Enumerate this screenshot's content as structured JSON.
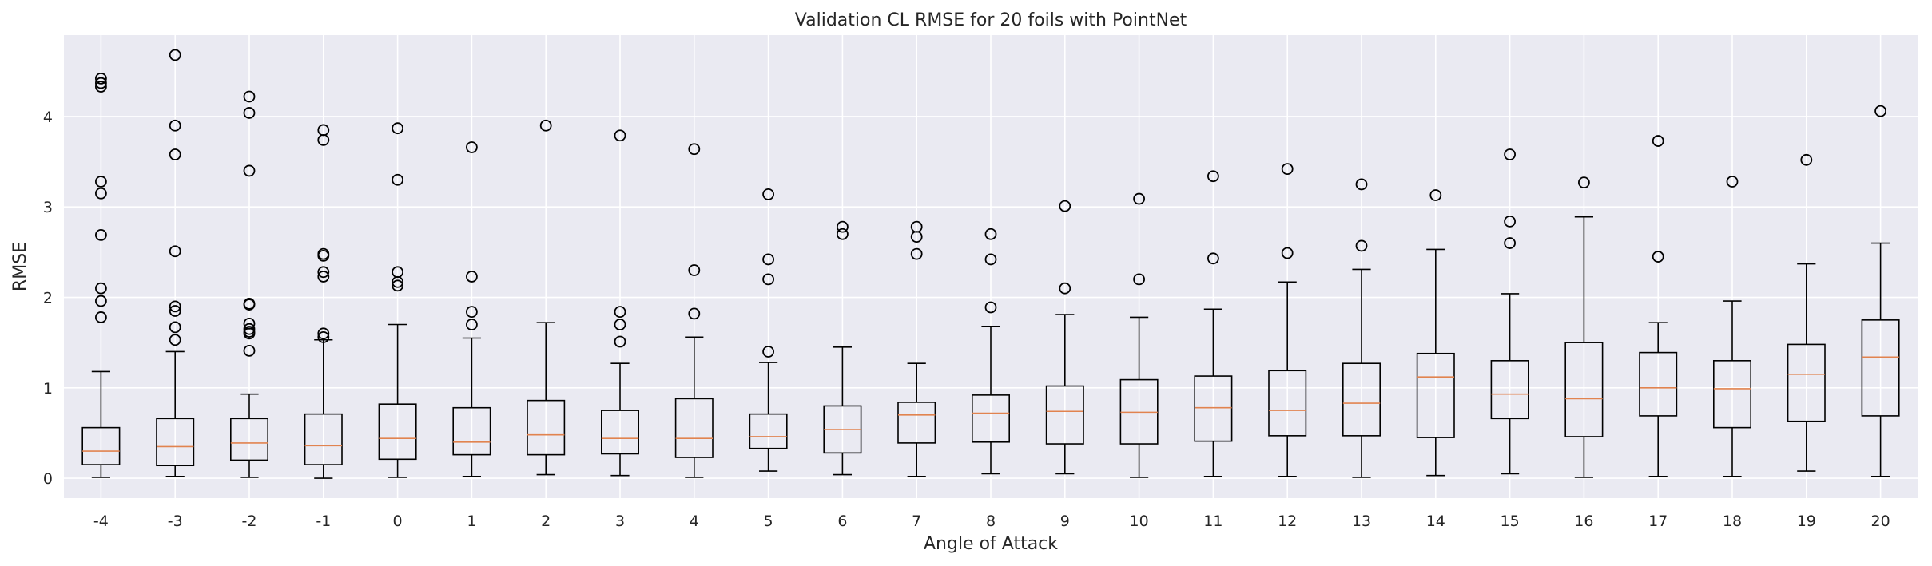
{
  "chart_data": {
    "type": "box",
    "title": "Validation CL RMSE for 20 foils with PointNet",
    "xlabel": "Angle of Attack",
    "ylabel": "RMSE",
    "ylim": [
      -0.22,
      4.9
    ],
    "yticks": [
      0,
      1,
      2,
      3,
      4
    ],
    "grid": true,
    "median_color": "#e1834f",
    "background_color": "#eaeaf2",
    "categories": [
      "-4",
      "-3",
      "-2",
      "-1",
      "0",
      "1",
      "2",
      "3",
      "4",
      "5",
      "6",
      "7",
      "8",
      "9",
      "10",
      "11",
      "12",
      "13",
      "14",
      "15",
      "16",
      "17",
      "18",
      "19",
      "20"
    ],
    "boxes": [
      {
        "whislo": 0.01,
        "q1": 0.15,
        "med": 0.3,
        "q3": 0.56,
        "whishi": 1.18,
        "fliers": [
          4.42,
          4.37,
          4.33,
          3.28,
          3.15,
          2.69,
          2.1,
          1.96,
          1.78
        ]
      },
      {
        "whislo": 0.02,
        "q1": 0.14,
        "med": 0.35,
        "q3": 0.66,
        "whishi": 1.4,
        "fliers": [
          4.68,
          3.9,
          3.58,
          2.51,
          1.9,
          1.85,
          1.67,
          1.53
        ]
      },
      {
        "whislo": 0.01,
        "q1": 0.2,
        "med": 0.39,
        "q3": 0.66,
        "whishi": 0.93,
        "fliers": [
          4.22,
          4.04,
          3.4,
          1.93,
          1.92,
          1.71,
          1.65,
          1.62,
          1.6,
          1.41
        ]
      },
      {
        "whislo": 0.0,
        "q1": 0.15,
        "med": 0.36,
        "q3": 0.71,
        "whishi": 1.53,
        "fliers": [
          3.85,
          3.74,
          2.48,
          2.46,
          2.28,
          2.23,
          1.6,
          1.56
        ]
      },
      {
        "whislo": 0.01,
        "q1": 0.21,
        "med": 0.44,
        "q3": 0.82,
        "whishi": 1.7,
        "fliers": [
          3.87,
          3.3,
          2.28,
          2.17,
          2.13
        ]
      },
      {
        "whislo": 0.02,
        "q1": 0.26,
        "med": 0.4,
        "q3": 0.78,
        "whishi": 1.55,
        "fliers": [
          3.66,
          2.23,
          1.84,
          1.7
        ]
      },
      {
        "whislo": 0.04,
        "q1": 0.26,
        "med": 0.48,
        "q3": 0.86,
        "whishi": 1.72,
        "fliers": [
          3.9
        ]
      },
      {
        "whislo": 0.03,
        "q1": 0.27,
        "med": 0.44,
        "q3": 0.75,
        "whishi": 1.27,
        "fliers": [
          3.79,
          1.84,
          1.7,
          1.51
        ]
      },
      {
        "whislo": 0.01,
        "q1": 0.23,
        "med": 0.44,
        "q3": 0.88,
        "whishi": 1.56,
        "fliers": [
          3.64,
          2.3,
          1.82
        ]
      },
      {
        "whislo": 0.08,
        "q1": 0.33,
        "med": 0.46,
        "q3": 0.71,
        "whishi": 1.28,
        "fliers": [
          3.14,
          2.42,
          2.2,
          1.4
        ]
      },
      {
        "whislo": 0.04,
        "q1": 0.28,
        "med": 0.54,
        "q3": 0.8,
        "whishi": 1.45,
        "fliers": [
          2.78,
          2.7
        ]
      },
      {
        "whislo": 0.02,
        "q1": 0.39,
        "med": 0.7,
        "q3": 0.84,
        "whishi": 1.27,
        "fliers": [
          2.78,
          2.67,
          2.48
        ]
      },
      {
        "whislo": 0.05,
        "q1": 0.4,
        "med": 0.72,
        "q3": 0.92,
        "whishi": 1.68,
        "fliers": [
          2.7,
          2.42,
          1.89
        ]
      },
      {
        "whislo": 0.05,
        "q1": 0.38,
        "med": 0.74,
        "q3": 1.02,
        "whishi": 1.81,
        "fliers": [
          3.01,
          2.1
        ]
      },
      {
        "whislo": 0.01,
        "q1": 0.38,
        "med": 0.73,
        "q3": 1.09,
        "whishi": 1.78,
        "fliers": [
          3.09,
          2.2
        ]
      },
      {
        "whislo": 0.02,
        "q1": 0.41,
        "med": 0.78,
        "q3": 1.13,
        "whishi": 1.87,
        "fliers": [
          3.34,
          2.43
        ]
      },
      {
        "whislo": 0.02,
        "q1": 0.47,
        "med": 0.75,
        "q3": 1.19,
        "whishi": 2.17,
        "fliers": [
          3.42,
          2.49
        ]
      },
      {
        "whislo": 0.01,
        "q1": 0.47,
        "med": 0.83,
        "q3": 1.27,
        "whishi": 2.31,
        "fliers": [
          3.25,
          2.57
        ]
      },
      {
        "whislo": 0.03,
        "q1": 0.45,
        "med": 1.12,
        "q3": 1.38,
        "whishi": 2.53,
        "fliers": [
          3.13
        ]
      },
      {
        "whislo": 0.05,
        "q1": 0.66,
        "med": 0.93,
        "q3": 1.3,
        "whishi": 2.04,
        "fliers": [
          3.58,
          2.84,
          2.6
        ]
      },
      {
        "whislo": 0.01,
        "q1": 0.46,
        "med": 0.88,
        "q3": 1.5,
        "whishi": 2.89,
        "fliers": [
          3.27
        ]
      },
      {
        "whislo": 0.02,
        "q1": 0.69,
        "med": 1.0,
        "q3": 1.39,
        "whishi": 1.72,
        "fliers": [
          3.73,
          2.45
        ]
      },
      {
        "whislo": 0.02,
        "q1": 0.56,
        "med": 0.99,
        "q3": 1.3,
        "whishi": 1.96,
        "fliers": [
          3.28
        ]
      },
      {
        "whislo": 0.08,
        "q1": 0.63,
        "med": 1.15,
        "q3": 1.48,
        "whishi": 2.37,
        "fliers": [
          3.52
        ]
      },
      {
        "whislo": 0.02,
        "q1": 0.69,
        "med": 1.34,
        "q3": 1.75,
        "whishi": 2.6,
        "fliers": [
          4.06
        ]
      }
    ]
  }
}
